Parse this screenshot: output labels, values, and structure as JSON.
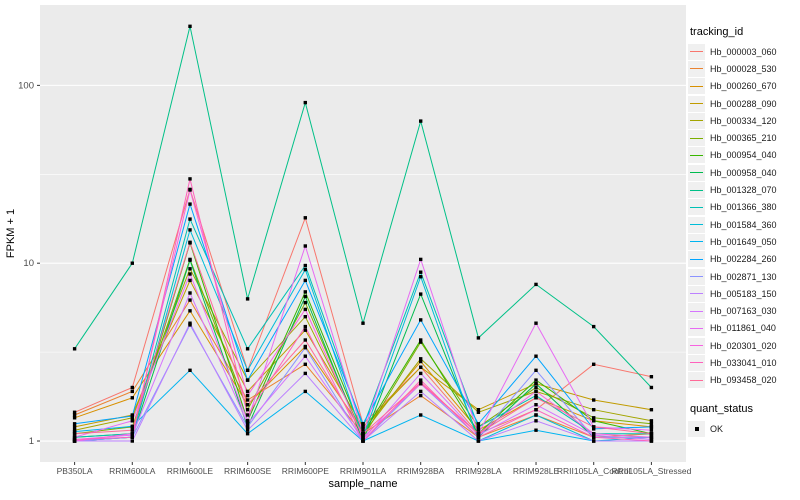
{
  "panel": {
    "bg": "#EBEBEB",
    "grid": "#FFFFFF",
    "tick_text_color": "#4D4D4D",
    "axis_title_color": "#000000",
    "marker_color": "#000000"
  },
  "legend": {
    "tracking_title": "tracking_id",
    "quant_title": "quant_status",
    "quant_items": [
      {
        "label": "OK",
        "marker": "black-square"
      }
    ]
  },
  "chart_data": {
    "type": "line",
    "title": "",
    "xlabel": "sample_name",
    "ylabel": "FPKM + 1",
    "x_categories": [
      "PB350LA",
      "RRIM600LA",
      "RRIM600LE",
      "RRIM600SE",
      "RRIM600PE",
      "RRIM901LA",
      "RRIM928BA",
      "RRIM928LA",
      "RRIM928LE",
      "RRII105LA_Control",
      "RRII105LA_Stressed"
    ],
    "y_scale": "log10",
    "y_ticks": [
      1,
      10,
      100
    ],
    "y_minor_ticks": [
      3.162,
      31.62
    ],
    "ylim_log": [
      -0.118,
      2.452
    ],
    "legend_position": "right",
    "grid": true,
    "series": [
      {
        "name": "Hb_000003_060",
        "color": "#F8766D",
        "values": [
          1.45,
          2.0,
          26.0,
          2.5,
          18.0,
          1.25,
          2.6,
          1.1,
          1.5,
          2.7,
          2.3
        ]
      },
      {
        "name": "Hb_000028_530",
        "color": "#EA8331",
        "values": [
          1.4,
          1.9,
          6.2,
          1.7,
          2.7,
          1.1,
          1.8,
          1.05,
          1.4,
          1.05,
          1.1
        ]
      },
      {
        "name": "Hb_000260_670",
        "color": "#D89000",
        "values": [
          1.35,
          1.75,
          5.4,
          1.6,
          3.4,
          1.15,
          2.8,
          1.15,
          1.75,
          1.3,
          1.2
        ]
      },
      {
        "name": "Hb_000288_090",
        "color": "#C09B00",
        "values": [
          1.2,
          1.4,
          8.0,
          1.9,
          4.2,
          1.2,
          2.6,
          1.5,
          2.1,
          1.7,
          1.5
        ]
      },
      {
        "name": "Hb_000334_120",
        "color": "#A3A500",
        "values": [
          1.15,
          1.35,
          9.3,
          2.2,
          5.0,
          1.1,
          2.9,
          1.45,
          1.9,
          1.5,
          1.3
        ]
      },
      {
        "name": "Hb_000365_210",
        "color": "#7CAE00",
        "values": [
          1.1,
          1.2,
          10.5,
          1.5,
          6.0,
          1.05,
          3.6,
          1.2,
          2.0,
          1.35,
          1.25
        ]
      },
      {
        "name": "Hb_000954_040",
        "color": "#39B600",
        "values": [
          1.05,
          1.1,
          13.0,
          1.3,
          6.9,
          1.1,
          3.7,
          1.1,
          2.2,
          1.3,
          1.1
        ]
      },
      {
        "name": "Hb_000958_040",
        "color": "#00BB4E",
        "values": [
          1.0,
          1.05,
          10.4,
          1.2,
          6.5,
          1.0,
          6.7,
          1.05,
          2.1,
          1.05,
          1.05
        ]
      },
      {
        "name": "Hb_001328_070",
        "color": "#00C087",
        "values": [
          3.3,
          10.0,
          215.0,
          6.3,
          80.0,
          4.6,
          63.0,
          3.8,
          7.6,
          4.4,
          2.0
        ]
      },
      {
        "name": "Hb_001366_380",
        "color": "#00C0B4",
        "values": [
          1.05,
          1.1,
          17.7,
          3.3,
          9.7,
          1.2,
          8.9,
          1.2,
          1.8,
          1.1,
          1.1
        ]
      },
      {
        "name": "Hb_001584_360",
        "color": "#00BDD8",
        "values": [
          1.0,
          1.05,
          15.4,
          2.5,
          9.2,
          1.05,
          8.4,
          1.0,
          1.4,
          1.0,
          1.05
        ]
      },
      {
        "name": "Hb_001649_050",
        "color": "#00B4F0",
        "values": [
          1.13,
          1.21,
          2.5,
          1.1,
          1.9,
          1.0,
          1.4,
          1.0,
          1.15,
          1.0,
          1.0
        ]
      },
      {
        "name": "Hb_002284_260",
        "color": "#00A5FF",
        "values": [
          1.25,
          1.38,
          21.5,
          2.2,
          8.0,
          1.25,
          4.8,
          1.25,
          3.0,
          1.17,
          1.2
        ]
      },
      {
        "name": "Hb_002871_130",
        "color": "#8B93FF",
        "values": [
          1.0,
          1.05,
          4.5,
          1.2,
          3.35,
          1.0,
          2.1,
          1.05,
          2.5,
          1.05,
          1.05
        ]
      },
      {
        "name": "Hb_005183_150",
        "color": "#BC81FF",
        "values": [
          1.0,
          1.0,
          4.6,
          1.15,
          2.4,
          1.0,
          1.9,
          1.0,
          1.3,
          1.0,
          1.0
        ]
      },
      {
        "name": "Hb_007163_030",
        "color": "#D575FE",
        "values": [
          1.02,
          1.08,
          6.8,
          1.25,
          3.0,
          1.02,
          2.4,
          1.08,
          1.6,
          1.08,
          1.02
        ]
      },
      {
        "name": "Hb_011861_040",
        "color": "#E76BF3",
        "values": [
          1.05,
          1.3,
          8.7,
          1.3,
          12.5,
          1.1,
          10.5,
          1.1,
          4.6,
          1.2,
          1.15
        ]
      },
      {
        "name": "Hb_020301_020",
        "color": "#F763E0",
        "values": [
          1.0,
          1.1,
          25.8,
          1.8,
          5.5,
          1.05,
          2.1,
          1.1,
          1.9,
          1.1,
          1.05
        ]
      },
      {
        "name": "Hb_033041_010",
        "color": "#FF62BC",
        "values": [
          1.02,
          1.05,
          29.8,
          1.4,
          4.4,
          1.0,
          2.2,
          1.05,
          1.5,
          1.05,
          1.0
        ]
      },
      {
        "name": "Hb_093458_020",
        "color": "#FF6A98",
        "values": [
          1.1,
          1.15,
          13.1,
          1.6,
          3.7,
          1.1,
          2.13,
          1.1,
          1.75,
          1.2,
          1.1
        ]
      }
    ]
  }
}
